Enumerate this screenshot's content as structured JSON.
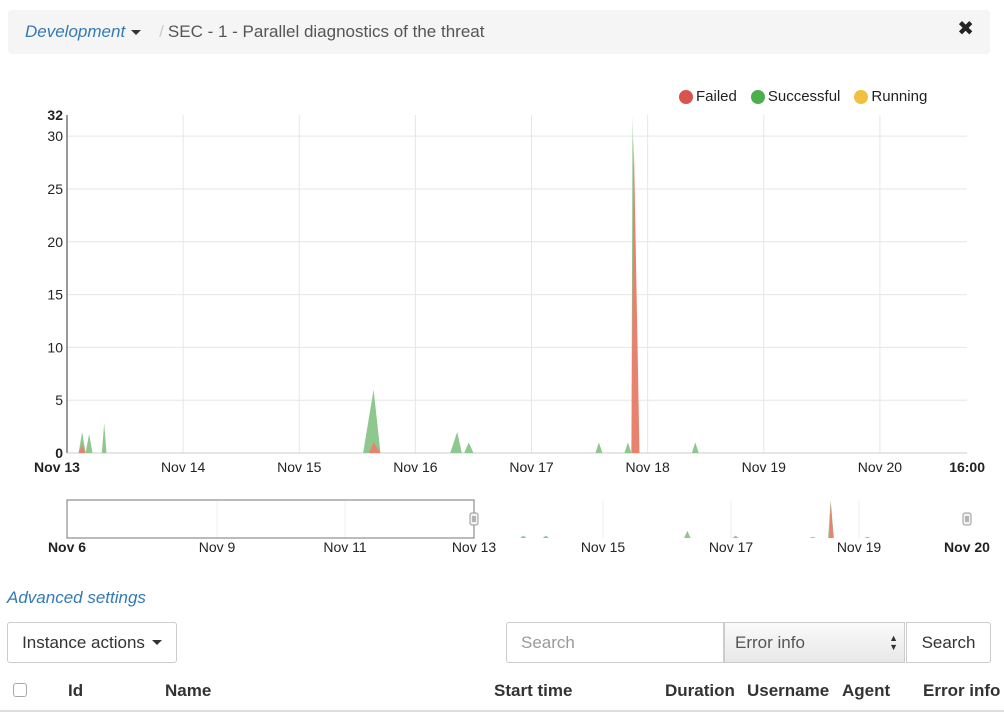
{
  "breadcrumb": {
    "project": "Development",
    "separator": "/",
    "current": "SEC - 1 - Parallel diagnostics of the threat"
  },
  "close_icon": "✖",
  "legend": [
    {
      "label": "Failed",
      "color": "#d9534f"
    },
    {
      "label": "Successful",
      "color": "#4cae4c"
    },
    {
      "label": "Running",
      "color": "#f0c040"
    }
  ],
  "chart_data": [
    {
      "type": "area",
      "ylim": [
        0,
        32
      ],
      "y_ticks": [
        0,
        5,
        10,
        15,
        20,
        25,
        30,
        32
      ],
      "x_tick_labels": [
        "Nov 13",
        "Nov 14",
        "Nov 15",
        "Nov 16",
        "Nov 17",
        "Nov 18",
        "Nov 19",
        "Nov 20",
        "16:00"
      ],
      "x_range_days": [
        0,
        7.75
      ],
      "grid": true,
      "series": [
        {
          "name": "Successful",
          "color": "#8ec88e",
          "points": [
            [
              0.1,
              0
            ],
            [
              0.13,
              2
            ],
            [
              0.16,
              0
            ],
            [
              0.19,
              1.8
            ],
            [
              0.22,
              0
            ],
            [
              0.3,
              0
            ],
            [
              0.32,
              2.8
            ],
            [
              0.34,
              0
            ],
            [
              2.55,
              0
            ],
            [
              2.64,
              6
            ],
            [
              2.7,
              0
            ],
            [
              3.3,
              0
            ],
            [
              3.36,
              2
            ],
            [
              3.4,
              0
            ],
            [
              3.42,
              0
            ],
            [
              3.46,
              1
            ],
            [
              3.5,
              0
            ],
            [
              4.55,
              0
            ],
            [
              4.58,
              1
            ],
            [
              4.61,
              0
            ],
            [
              4.8,
              0
            ],
            [
              4.83,
              1
            ],
            [
              4.86,
              0
            ],
            [
              4.87,
              32
            ],
            [
              4.92,
              0
            ],
            [
              5.38,
              0
            ],
            [
              5.41,
              1
            ],
            [
              5.44,
              0
            ]
          ]
        },
        {
          "name": "Failed",
          "color": "#e8826f",
          "points": [
            [
              0.1,
              0
            ],
            [
              0.13,
              0.8
            ],
            [
              0.16,
              0
            ],
            [
              2.6,
              0
            ],
            [
              2.64,
              1
            ],
            [
              2.7,
              0
            ],
            [
              4.86,
              0
            ],
            [
              4.88,
              30
            ],
            [
              4.93,
              0
            ]
          ]
        }
      ]
    },
    {
      "type": "area",
      "ylim": [
        0,
        32
      ],
      "x_tick_labels": [
        "Nov 6",
        "Nov 9",
        "Nov 11",
        "Nov 13",
        "Nov 15",
        "Nov 17",
        "Nov 19",
        "Nov 20"
      ],
      "x_range_days": [
        0,
        14
      ],
      "selected_range": [
        "Nov 6",
        "Nov 13"
      ],
      "series": [
        {
          "name": "Successful",
          "color": "#8ec88e",
          "points": [
            [
              7.05,
              0
            ],
            [
              7.1,
              2
            ],
            [
              7.15,
              0
            ],
            [
              7.4,
              0
            ],
            [
              7.45,
              2
            ],
            [
              7.5,
              0
            ],
            [
              9.6,
              0
            ],
            [
              9.65,
              6
            ],
            [
              9.7,
              0
            ],
            [
              10.35,
              0
            ],
            [
              10.4,
              2
            ],
            [
              10.45,
              0
            ],
            [
              11.55,
              0
            ],
            [
              11.6,
              1
            ],
            [
              11.65,
              0
            ],
            [
              11.84,
              0
            ],
            [
              11.88,
              32
            ],
            [
              11.93,
              0
            ],
            [
              12.4,
              0
            ],
            [
              12.45,
              1
            ],
            [
              12.5,
              0
            ]
          ]
        },
        {
          "name": "Failed",
          "color": "#e8826f",
          "points": [
            [
              11.86,
              0
            ],
            [
              11.88,
              30
            ],
            [
              11.92,
              0
            ]
          ]
        }
      ]
    }
  ],
  "advanced_settings": "Advanced settings",
  "toolbar": {
    "instance_actions": "Instance actions",
    "search_placeholder": "Search",
    "select_value": "Error info",
    "search_button": "Search"
  },
  "table": {
    "columns": [
      "Id",
      "Name",
      "Start time",
      "Duration",
      "Username",
      "Agent",
      "Error info"
    ]
  }
}
